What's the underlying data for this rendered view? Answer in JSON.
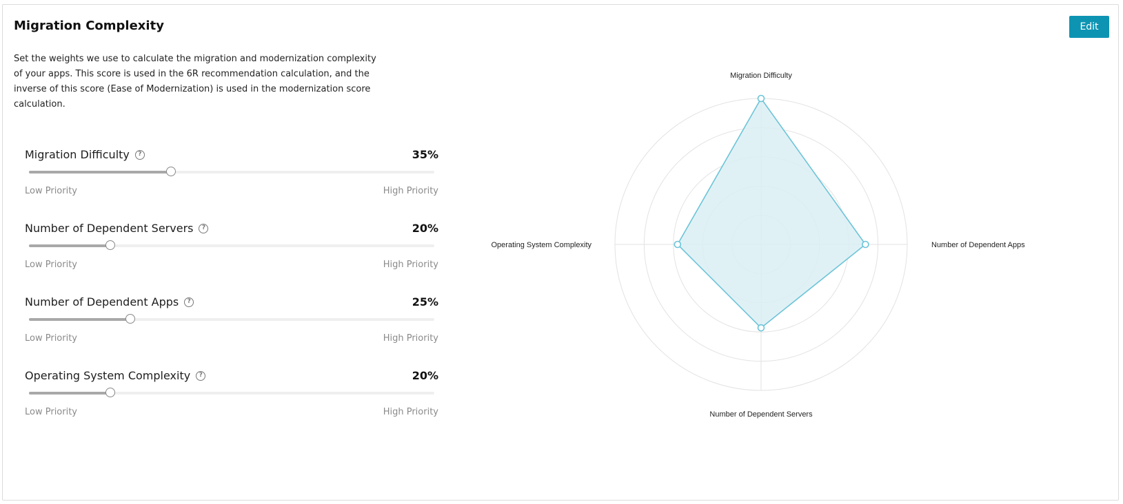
{
  "header": {
    "title": "Migration Complexity",
    "edit_label": "Edit",
    "description": "Set the weights we use to calculate the migration and modernization complexity of your apps. This score is used in the 6R recommendation calculation, and the inverse of this score (Ease of Modernization) is used in the modernization score calculation."
  },
  "sliders": [
    {
      "label": "Migration Difficulty",
      "value_text": "35%",
      "value": 35,
      "low": "Low Priority",
      "high": "High Priority"
    },
    {
      "label": "Number of Dependent Servers",
      "value_text": "20%",
      "value": 20,
      "low": "Low Priority",
      "high": "High Priority"
    },
    {
      "label": "Number of Dependent Apps",
      "value_text": "25%",
      "value": 25,
      "low": "Low Priority",
      "high": "High Priority"
    },
    {
      "label": "Operating System Complexity",
      "value_text": "20%",
      "value": 20,
      "low": "Low Priority",
      "high": "High Priority"
    }
  ],
  "chart_data": {
    "type": "radar",
    "axes": [
      "Migration Difficulty",
      "Number of Dependent Apps",
      "Number of Dependent Servers",
      "Operating System Complexity"
    ],
    "values": [
      35,
      25,
      20,
      20
    ],
    "rmax": 35,
    "rings": 5,
    "grid": true,
    "stroke_color": "#6cc4d8",
    "fill_color": "#daeff5"
  },
  "colors": {
    "accent": "#0e94b3",
    "slider_fill": "#a8a8a8",
    "slider_track": "#efefef"
  },
  "icons": {
    "help": "question-circle-icon"
  }
}
